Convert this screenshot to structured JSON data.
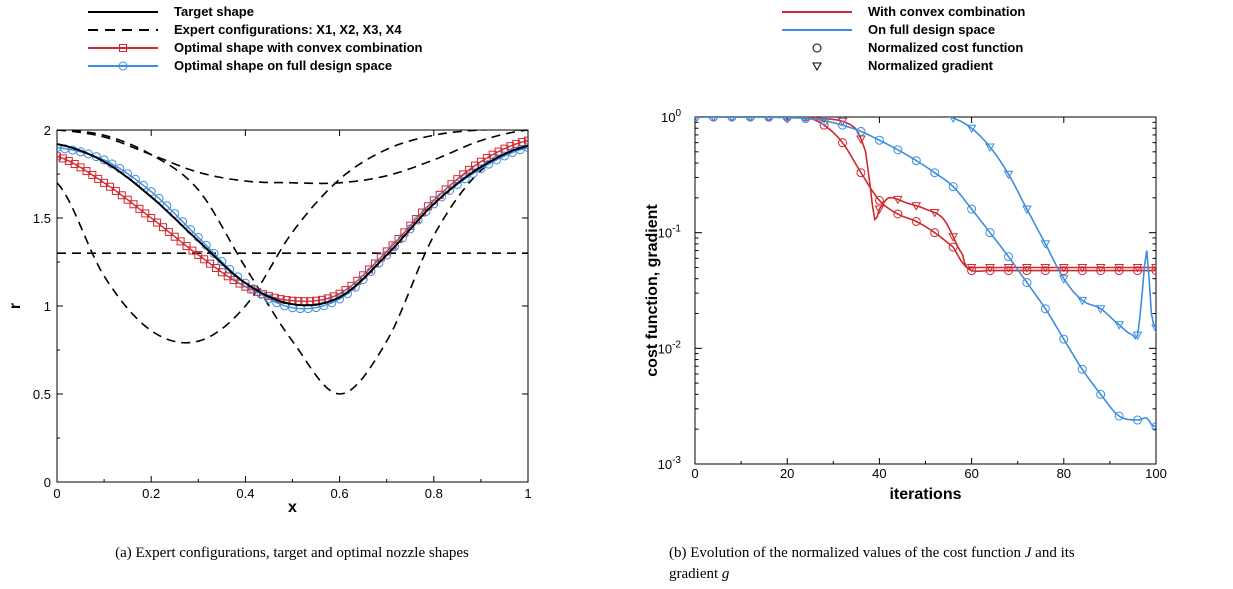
{
  "chart_data": [
    {
      "type": "line",
      "panel": "a",
      "xlabel": "x",
      "ylabel": "r",
      "xlim": [
        0,
        1
      ],
      "ylim": [
        0,
        2
      ],
      "x_ticks": [
        "0",
        "0.2",
        "0.4",
        "0.6",
        "0.8",
        "1"
      ],
      "y_ticks": [
        "0",
        "0.5",
        "1",
        "1.5",
        "2"
      ],
      "grid": false,
      "legend_position": "top",
      "caption": "(a) Expert configurations, target and optimal nozzle shapes",
      "series": [
        {
          "name": "Target shape",
          "style": "solid",
          "color": "#000000",
          "marker": "none",
          "x": [
            0,
            0.1,
            0.2,
            0.3,
            0.4,
            0.5,
            0.6,
            0.7,
            0.8,
            0.9,
            1.0
          ],
          "y": [
            1.92,
            1.82,
            1.62,
            1.37,
            1.13,
            1.01,
            1.05,
            1.29,
            1.58,
            1.79,
            1.91
          ]
        },
        {
          "name": "Expert configurations: X1, X2, X3, X4",
          "style": "dashed",
          "color": "#000000",
          "marker": "none",
          "curves": [
            {
              "x": [
                0,
                0.1,
                0.2,
                0.3,
                0.4,
                0.5,
                0.6,
                0.7,
                0.8,
                0.9,
                1.0
              ],
              "y": [
                1.3,
                1.3,
                1.3,
                1.3,
                1.3,
                1.3,
                1.3,
                1.3,
                1.3,
                1.3,
                1.3
              ]
            },
            {
              "x": [
                0,
                0.1,
                0.2,
                0.3,
                0.4,
                0.5,
                0.6,
                0.7,
                0.8,
                0.9,
                1.0
              ],
              "y": [
                2.0,
                1.96,
                1.86,
                1.76,
                1.71,
                1.7,
                1.7,
                1.74,
                1.83,
                1.94,
                2.0
              ]
            },
            {
              "x": [
                0,
                0.1,
                0.2,
                0.3,
                0.4,
                0.5,
                0.6,
                0.7,
                0.8,
                0.9,
                1.0
              ],
              "y": [
                1.7,
                1.17,
                0.86,
                0.8,
                1.0,
                1.42,
                1.72,
                1.89,
                1.97,
                2.0,
                2.0
              ]
            },
            {
              "x": [
                0,
                0.1,
                0.2,
                0.3,
                0.4,
                0.5,
                0.6,
                0.7,
                0.8,
                0.9,
                1.0
              ],
              "y": [
                2.0,
                1.97,
                1.86,
                1.66,
                1.22,
                0.8,
                0.5,
                0.8,
                1.4,
                1.77,
                1.9
              ]
            }
          ]
        },
        {
          "name": "Optimal shape with convex combination",
          "style": "solid",
          "color": "#d0282e",
          "marker": "square",
          "x": [
            0,
            0.1,
            0.2,
            0.3,
            0.4,
            0.5,
            0.6,
            0.7,
            0.8,
            0.9,
            1.0
          ],
          "y": [
            1.85,
            1.7,
            1.5,
            1.29,
            1.11,
            1.03,
            1.07,
            1.31,
            1.6,
            1.82,
            1.94
          ]
        },
        {
          "name": "Optimal shape on full design space",
          "style": "solid",
          "color": "#3c8de0",
          "marker": "circle",
          "x": [
            0,
            0.1,
            0.2,
            0.3,
            0.4,
            0.5,
            0.6,
            0.7,
            0.8,
            0.9,
            1.0
          ],
          "y": [
            1.9,
            1.83,
            1.65,
            1.39,
            1.13,
            0.99,
            1.04,
            1.29,
            1.58,
            1.78,
            1.9
          ]
        }
      ]
    },
    {
      "type": "line",
      "panel": "b",
      "xlabel": "iterations",
      "ylabel": "cost function, gradient",
      "xlim": [
        0,
        100
      ],
      "ylim": [
        0.001,
        1
      ],
      "yscale": "log",
      "x_ticks": [
        "0",
        "20",
        "40",
        "60",
        "80",
        "100"
      ],
      "y_ticks": [
        {
          "base": "10",
          "exp": "-3",
          "value": 0.001
        },
        {
          "base": "10",
          "exp": "-2",
          "value": 0.01
        },
        {
          "base": "10",
          "exp": "-1",
          "value": 0.1
        },
        {
          "base": "10",
          "exp": "0",
          "value": 1
        }
      ],
      "grid": false,
      "legend_position": "top",
      "caption_lines": [
        [
          "(b) Evolution of the normalized values of the cost function ",
          "J",
          " and its"
        ],
        [
          "gradient ",
          "g"
        ]
      ],
      "legend": [
        {
          "name": "With convex combination",
          "color": "#d0282e",
          "kind": "line"
        },
        {
          "name": "On full design space",
          "color": "#3c8de0",
          "kind": "line"
        },
        {
          "name": "Normalized cost function",
          "color": "#000000",
          "kind": "circle"
        },
        {
          "name": "Normalized gradient",
          "color": "#000000",
          "kind": "triangle"
        }
      ],
      "series": [
        {
          "group": "With convex combination",
          "quantity": "Normalized cost function",
          "color": "#d0282e",
          "marker": "circle",
          "x": [
            0,
            24,
            28,
            32,
            36,
            40,
            44,
            48,
            52,
            56,
            58,
            60,
            64,
            70,
            80,
            90,
            100
          ],
          "y": [
            1.0,
            1.0,
            0.85,
            0.6,
            0.33,
            0.19,
            0.145,
            0.125,
            0.1,
            0.075,
            0.055,
            0.047,
            0.047,
            0.047,
            0.047,
            0.047,
            0.047
          ]
        },
        {
          "group": "With convex combination",
          "quantity": "Normalized gradient",
          "color": "#d0282e",
          "marker": "triangle",
          "x": [
            0,
            24,
            28,
            32,
            35,
            37,
            38,
            39,
            40,
            42,
            46,
            50,
            54,
            58,
            59,
            60,
            70,
            80,
            90,
            100
          ],
          "y": [
            1.0,
            1.0,
            0.97,
            0.92,
            0.78,
            0.5,
            0.25,
            0.13,
            0.16,
            0.2,
            0.18,
            0.16,
            0.13,
            0.065,
            0.05,
            0.05,
            0.05,
            0.05,
            0.05,
            0.05
          ]
        },
        {
          "group": "On full design space",
          "quantity": "Normalized cost function",
          "color": "#3c8de0",
          "marker": "circle",
          "x": [
            0,
            10,
            20,
            24,
            28,
            32,
            36,
            40,
            44,
            48,
            52,
            56,
            60,
            64,
            68,
            72,
            76,
            80,
            84,
            88,
            92,
            96,
            98,
            99,
            100
          ],
          "y": [
            1.0,
            1.0,
            0.99,
            0.97,
            0.93,
            0.85,
            0.75,
            0.63,
            0.52,
            0.42,
            0.33,
            0.25,
            0.16,
            0.1,
            0.062,
            0.037,
            0.022,
            0.012,
            0.0066,
            0.004,
            0.0026,
            0.0024,
            0.0025,
            0.0022,
            0.0021
          ]
        },
        {
          "group": "On full design space",
          "quantity": "Normalized gradient",
          "color": "#3c8de0",
          "marker": "triangle",
          "x": [
            0,
            20,
            28,
            32,
            36,
            40,
            44,
            48,
            52,
            56,
            60,
            64,
            68,
            72,
            76,
            80,
            84,
            88,
            92,
            95,
            96,
            97,
            98,
            99,
            100
          ],
          "y": [
            1.0,
            1.0,
            1.03,
            1.06,
            1.08,
            1.1,
            1.12,
            1.1,
            1.07,
            0.98,
            0.8,
            0.55,
            0.32,
            0.16,
            0.08,
            0.04,
            0.026,
            0.022,
            0.016,
            0.013,
            0.013,
            0.03,
            0.07,
            0.02,
            0.015
          ]
        }
      ]
    }
  ]
}
